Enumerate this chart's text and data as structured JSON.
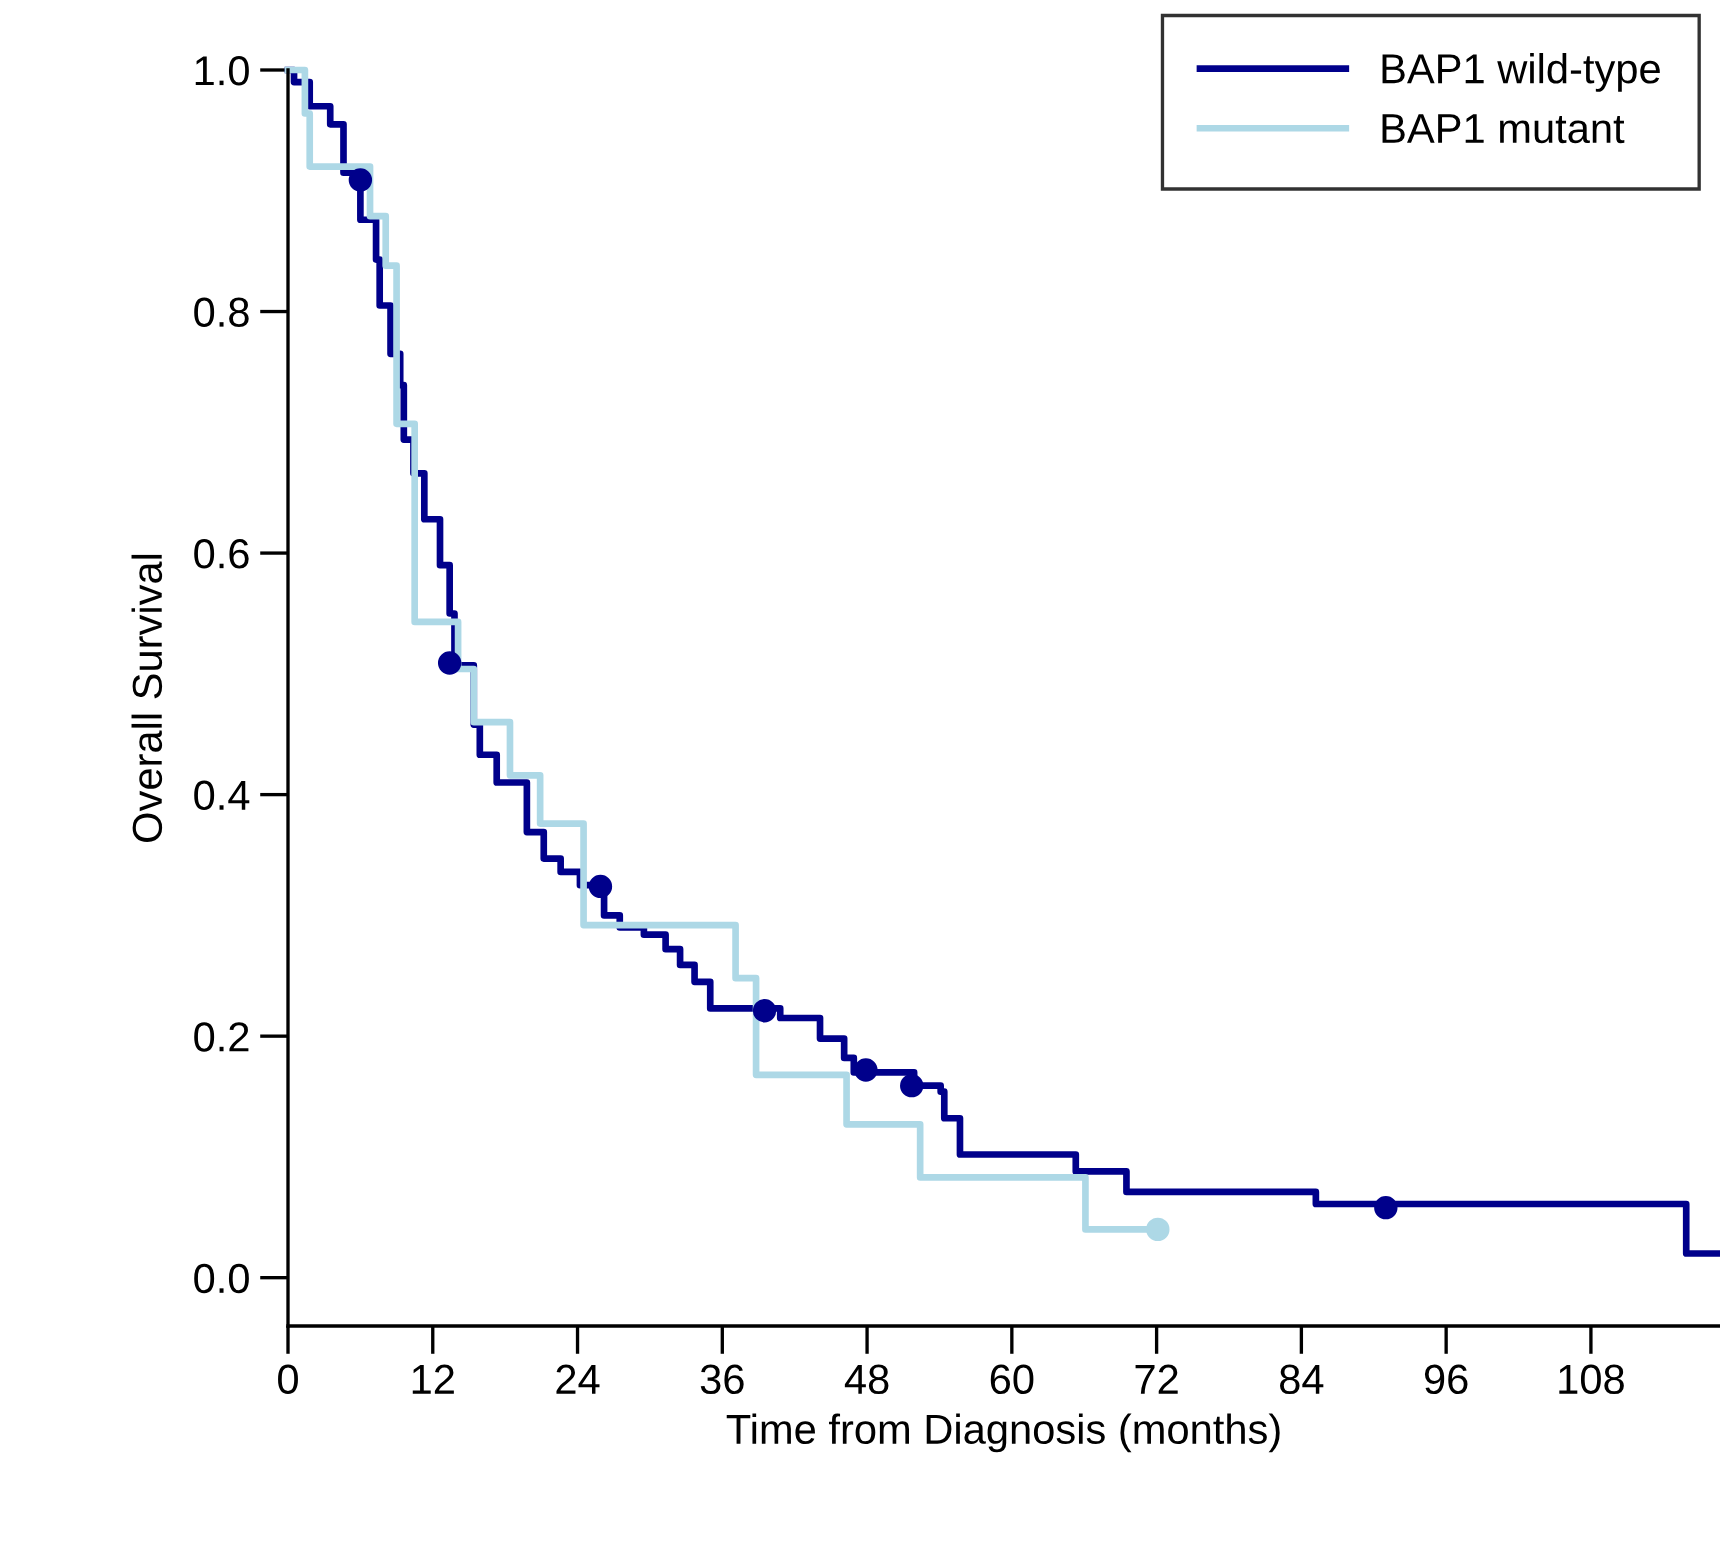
{
  "chart_data": {
    "type": "step",
    "xlabel": "Time from Diagnosis (months)",
    "ylabel": "Overall Survival",
    "xlim": [
      0,
      118.7
    ],
    "ylim": [
      -0.04,
      1.0
    ],
    "xticks": [
      0,
      12,
      24,
      36,
      48,
      60,
      72,
      84,
      96,
      108
    ],
    "yticks": [
      {
        "value": 0,
        "label": "0.0"
      },
      0.2,
      0.4,
      0.6,
      0.8,
      {
        "value": 1,
        "label": "1.0"
      }
    ],
    "grid": false,
    "legend": "top right",
    "line_style": "solid",
    "series": [
      {
        "name": "BAP1 wild-type",
        "color": "#00008b",
        "x": [
          0,
          0.5,
          1.8,
          3.5,
          4.6,
          6,
          7.3,
          7.6,
          8.5,
          9.3,
          9.6,
          10.4,
          11.3,
          12.6,
          13.4,
          13.8,
          15.4,
          15.9,
          17.3,
          19.8,
          21.2,
          22.6,
          24.2,
          26.2,
          27.5,
          29.5,
          31.3,
          32.5,
          33.7,
          35,
          40.8,
          44.1,
          46.1,
          46.9,
          51.9,
          54.1,
          54.4,
          55.7,
          65.3,
          69.5,
          85.2,
          115.9,
          118.7
        ],
        "values": [
          1.0,
          0.99,
          0.97,
          0.955,
          0.915,
          0.876,
          0.843,
          0.805,
          0.765,
          0.739,
          0.694,
          0.666,
          0.628,
          0.59,
          0.55,
          0.507,
          0.458,
          0.433,
          0.41,
          0.369,
          0.347,
          0.336,
          0.325,
          0.3,
          0.29,
          0.284,
          0.272,
          0.259,
          0.245,
          0.223,
          0.215,
          0.198,
          0.182,
          0.17,
          0.159,
          0.154,
          0.132,
          0.102,
          0.088,
          0.071,
          0.061,
          0.02,
          0.02
        ]
      },
      {
        "name": "BAP1 mutant",
        "color": "#add8e6",
        "x": [
          0,
          1.4,
          1.8,
          6.8,
          8.1,
          9.0,
          10.5,
          14.1,
          15.4,
          18.4,
          20.9,
          24.5,
          37.1,
          38.8,
          46.3,
          52.4,
          66.1,
          72.1
        ],
        "values": [
          1.0,
          0.964,
          0.92,
          0.879,
          0.838,
          0.707,
          0.543,
          0.504,
          0.46,
          0.416,
          0.376,
          0.292,
          0.248,
          0.168,
          0.127,
          0.083,
          0.04,
          0.04
        ]
      },
      {
        "color": "#00008b",
        "type": "scatter",
        "marker": "circle",
        "x": [
          6,
          13.4,
          25.9,
          39.5,
          47.9,
          51.7,
          91
        ],
        "values": [
          0.909,
          0.509,
          0.324,
          0.221,
          0.172,
          0.159,
          0.058
        ]
      },
      {
        "color": "#add8e6",
        "type": "scatter",
        "marker": "circle",
        "x": [
          72.1
        ],
        "values": [
          0.04
        ]
      }
    ]
  }
}
